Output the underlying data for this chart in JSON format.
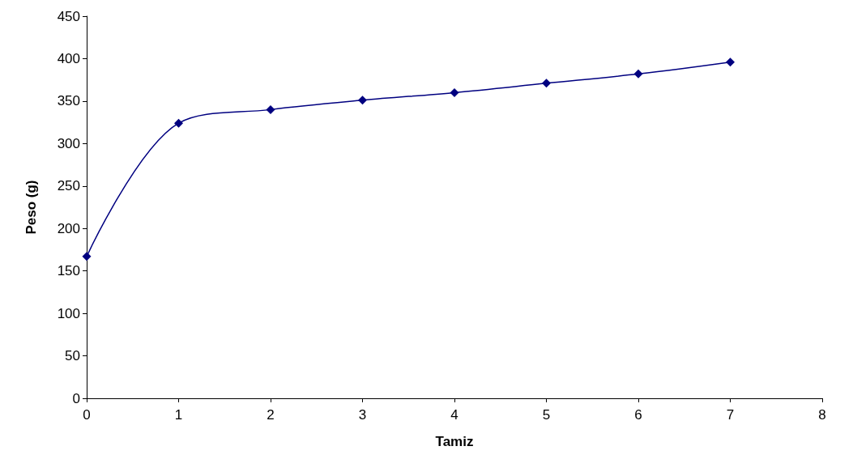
{
  "chart_data": {
    "type": "line",
    "xlabel": "Tamiz",
    "ylabel": "Peso (g)",
    "x": [
      0,
      1,
      2,
      3,
      4,
      5,
      6,
      7
    ],
    "series": [
      {
        "color": "#000080",
        "values": [
          167,
          324,
          340,
          351,
          360,
          371,
          382,
          396
        ]
      }
    ],
    "xlim": [
      0,
      8
    ],
    "xticks": [
      0,
      1,
      2,
      3,
      4,
      5,
      6,
      7,
      8
    ],
    "ylim": [
      0,
      450
    ],
    "yticks": [
      0,
      50,
      100,
      150,
      200,
      250,
      300,
      350,
      400,
      450
    ],
    "grid": false,
    "marker": "diamond",
    "line_style": "solid"
  }
}
